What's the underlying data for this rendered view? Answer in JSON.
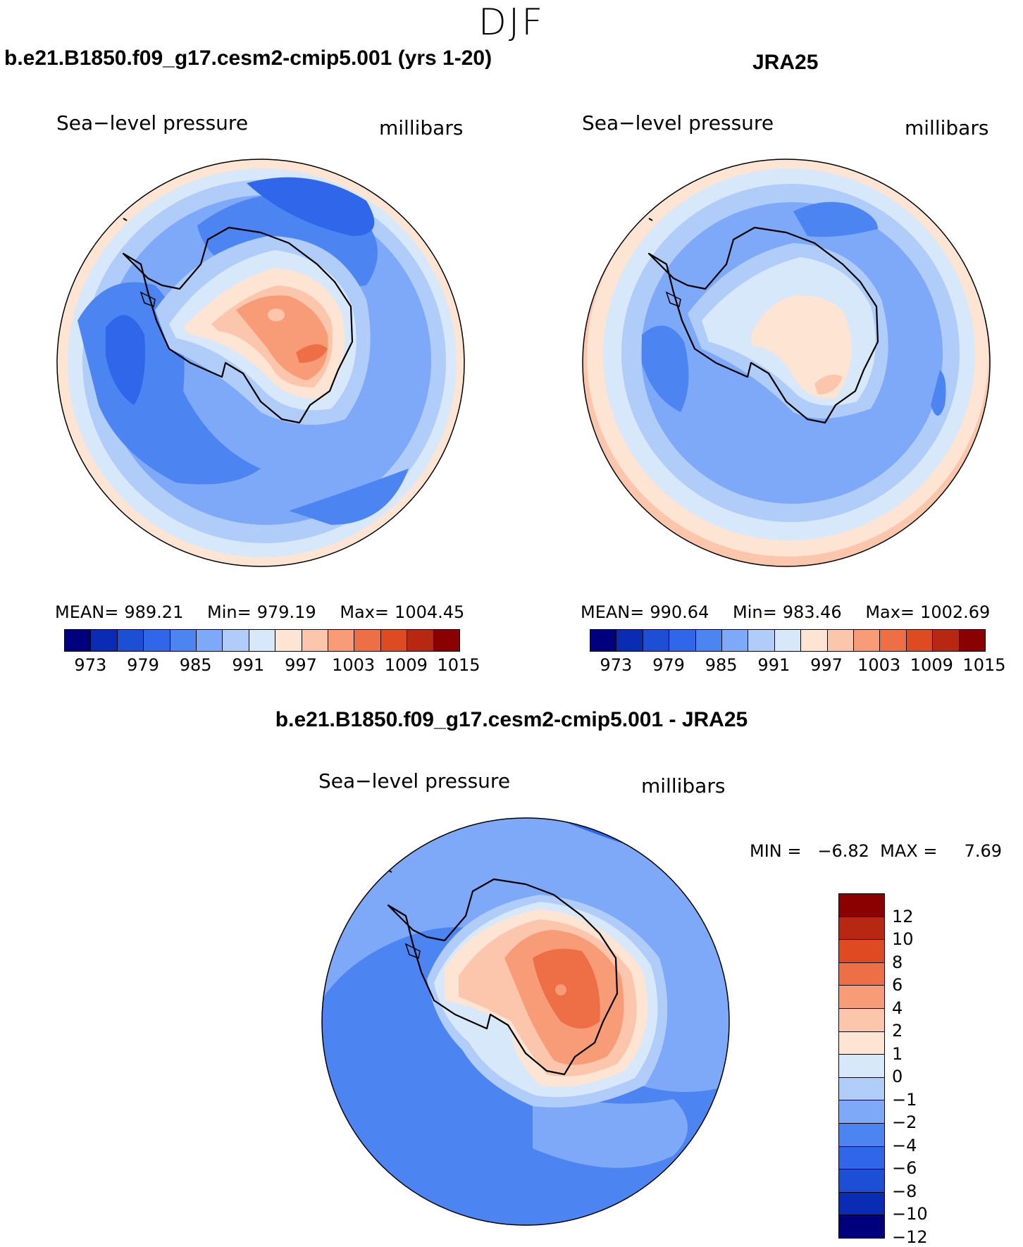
{
  "figure": {
    "season": "DJF",
    "variable": "Sea−level pressure",
    "units": "millibars"
  },
  "palette": {
    "abs": [
      "#00007f",
      "#0a2cb5",
      "#1d4fd6",
      "#2f66ea",
      "#4c84f2",
      "#7ea9f8",
      "#b0ccf9",
      "#d8e8fb",
      "#fde4d3",
      "#fcc6ad",
      "#f89c78",
      "#ee6e45",
      "#de4a22",
      "#b82712",
      "#8b0000"
    ],
    "diff": [
      "#00007f",
      "#0a2cb5",
      "#1d4fd6",
      "#2f66ea",
      "#4c84f2",
      "#7ea9f8",
      "#b0ccf9",
      "#d8e8fb",
      "#fde4d3",
      "#fcc6ad",
      "#f89c78",
      "#ee6e45",
      "#de4a22",
      "#b82712",
      "#8b0000"
    ]
  },
  "panels": {
    "model": {
      "title": "b.e21.B1850.f09_g17.cesm2-cmip5.001 (yrs 1-20)",
      "mean_label": "MEAN=",
      "mean": "989.21",
      "min_label": "Min=",
      "min": "979.19",
      "max_label": "Max=",
      "max": "1004.45",
      "ticks": [
        "973",
        "979",
        "985",
        "991",
        "997",
        "1003",
        "1009",
        "1015"
      ]
    },
    "obs": {
      "title": "JRA25",
      "mean_label": "MEAN=",
      "mean": "990.64",
      "min_label": "Min=",
      "min": "983.46",
      "max_label": "Max=",
      "max": "1002.69",
      "ticks": [
        "973",
        "979",
        "985",
        "991",
        "997",
        "1003",
        "1009",
        "1015"
      ]
    },
    "diff": {
      "title": "b.e21.B1850.f09_g17.cesm2-cmip5.001 - JRA25",
      "minmax_text": "MIN =   −6.82  MAX =     7.69",
      "ticks": [
        "12",
        "10",
        "8",
        "6",
        "4",
        "2",
        "1",
        "0",
        "−1",
        "−2",
        "−4",
        "−6",
        "−8",
        "−10",
        "−12"
      ]
    }
  }
}
